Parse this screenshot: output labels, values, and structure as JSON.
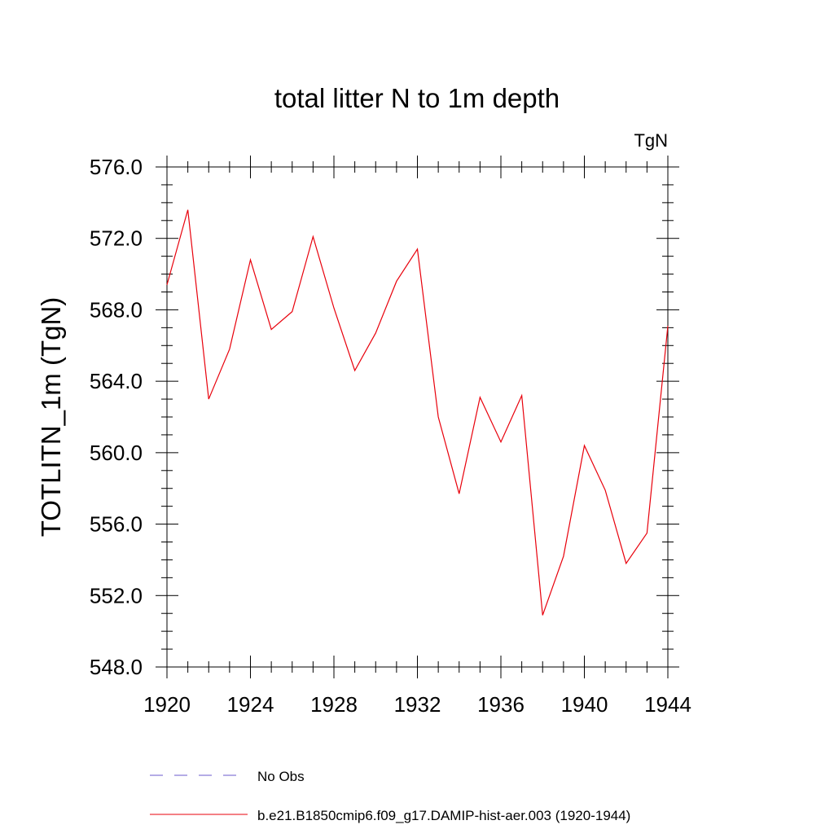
{
  "chart_data": {
    "type": "line",
    "title": "total litter N to 1m depth",
    "units_label": "TgN",
    "ylabel": "TOTLITN_1m  (TgN)",
    "xlabel": "",
    "xlim": [
      1920,
      1944
    ],
    "ylim": [
      548.0,
      576.0
    ],
    "x_ticks": [
      1920,
      1924,
      1928,
      1932,
      1936,
      1940,
      1944
    ],
    "x_tick_labels": [
      "1920",
      "1924",
      "1928",
      "1932",
      "1936",
      "1940",
      "1944"
    ],
    "y_ticks": [
      548.0,
      552.0,
      556.0,
      560.0,
      564.0,
      568.0,
      572.0,
      576.0
    ],
    "y_tick_labels": [
      "548.0",
      "552.0",
      "556.0",
      "560.0",
      "564.0",
      "568.0",
      "572.0",
      "576.0"
    ],
    "grid": false,
    "legend_position": "bottom",
    "series": [
      {
        "name": "b.e21.B1850cmip6.f09_g17.DAMIP-hist-aer.003 (1920-1944)",
        "color": "#e8000b",
        "style": "solid",
        "x": [
          1920,
          1921,
          1922,
          1923,
          1924,
          1925,
          1926,
          1927,
          1928,
          1929,
          1930,
          1931,
          1932,
          1933,
          1934,
          1935,
          1936,
          1937,
          1938,
          1939,
          1940,
          1941,
          1942,
          1943,
          1944
        ],
        "y": [
          569.4,
          573.6,
          563.0,
          565.8,
          570.8,
          566.9,
          567.9,
          572.1,
          568.1,
          564.6,
          566.7,
          569.6,
          571.4,
          562.0,
          557.7,
          563.1,
          560.6,
          563.2,
          550.9,
          554.2,
          560.4,
          557.9,
          553.8,
          555.5,
          567.1
        ]
      }
    ],
    "legend": [
      {
        "label": "No Obs",
        "color": "#6a5acd",
        "style": "dashed"
      },
      {
        "label": "b.e21.B1850cmip6.f09_g17.DAMIP-hist-aer.003 (1920-1944)",
        "color": "#e8000b",
        "style": "solid"
      }
    ]
  }
}
